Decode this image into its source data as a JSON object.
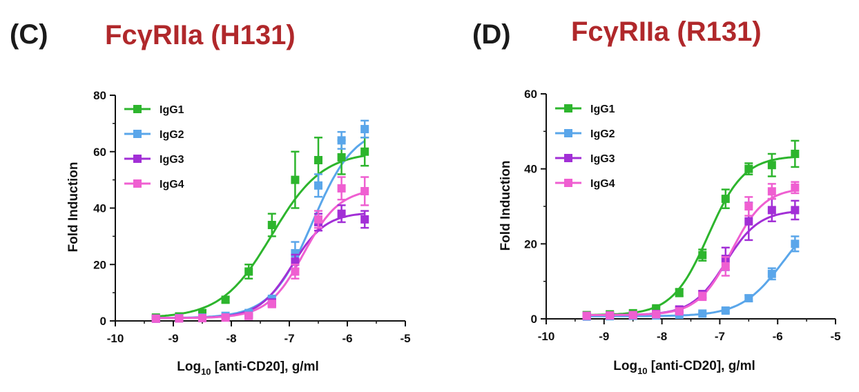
{
  "chart_data": [
    {
      "type": "line",
      "panel": "(C)",
      "title": "FcγRIIa (H131)",
      "xlabel": "Log",
      "xlabel_sub": "10",
      "xlabel_rest": " [anti-CD20], g/ml",
      "ylabel": "Fold Induction",
      "xlim": [
        -10,
        -5
      ],
      "ylim": [
        0,
        80
      ],
      "xticks": [
        -10,
        -9,
        -8,
        -7,
        -6,
        -5
      ],
      "xtick_labels": [
        "-10",
        "-9",
        "-8",
        "-7",
        "-6",
        "-5"
      ],
      "yticks": [
        0,
        20,
        40,
        60,
        80
      ],
      "ytick_labels": [
        "0",
        "20",
        "40",
        "60",
        "80"
      ],
      "x": [
        -9.3,
        -8.9,
        -8.5,
        -8.1,
        -7.7,
        -7.3,
        -6.9,
        -6.5,
        -6.1,
        -5.7
      ],
      "series": [
        {
          "name": "IgG1",
          "color": "#2db52d",
          "values": [
            1.2,
            1.6,
            2.8,
            7.5,
            17.5,
            34,
            50,
            57,
            58,
            60
          ],
          "errors": [
            0.5,
            0.5,
            0.8,
            1.0,
            2.5,
            4,
            10,
            8,
            6,
            5
          ],
          "curve": {
            "bottom": 1.0,
            "top": 60,
            "logEC50": -7.3,
            "hill": 1.0
          }
        },
        {
          "name": "IgG2",
          "color": "#5aa6ea",
          "values": [
            0.8,
            1.0,
            1.2,
            1.8,
            2.8,
            7.5,
            24,
            48,
            64,
            68
          ],
          "errors": [
            0.3,
            0.3,
            0.4,
            0.5,
            0.8,
            1.5,
            4,
            4,
            3,
            3
          ],
          "curve": {
            "bottom": 1.0,
            "top": 69,
            "logEC50": -6.6,
            "hill": 1.2
          }
        },
        {
          "name": "IgG3",
          "color": "#a22fd6",
          "values": [
            0.8,
            0.9,
            1.0,
            1.2,
            1.8,
            6.5,
            21,
            35,
            38,
            36
          ],
          "errors": [
            0.3,
            0.3,
            0.3,
            0.4,
            0.5,
            1.2,
            2.5,
            3,
            3,
            3
          ],
          "curve": {
            "bottom": 1.0,
            "top": 38.5,
            "logEC50": -6.95,
            "hill": 1.5
          }
        },
        {
          "name": "IgG4",
          "color": "#ef5fd1",
          "values": [
            0.8,
            0.9,
            1.0,
            1.2,
            1.8,
            6.0,
            17.5,
            36,
            47,
            46
          ],
          "errors": [
            0.3,
            0.3,
            0.3,
            0.4,
            0.5,
            1.2,
            2.5,
            3,
            4,
            5
          ],
          "curve": {
            "bottom": 1.0,
            "top": 47,
            "logEC50": -6.75,
            "hill": 1.4
          }
        }
      ]
    },
    {
      "type": "line",
      "panel": "(D)",
      "title": "FcγRIIa (R131)",
      "xlabel": "Log",
      "xlabel_sub": "10",
      "xlabel_rest": " [anti-CD20], g/ml",
      "ylabel": "Fold Induction",
      "xlim": [
        -10,
        -5
      ],
      "ylim": [
        0,
        60
      ],
      "xticks": [
        -10,
        -9,
        -8,
        -7,
        -6,
        -5
      ],
      "xtick_labels": [
        "-10",
        "-9",
        "-8",
        "-7",
        "-6",
        "-5"
      ],
      "yticks": [
        0,
        20,
        40,
        60
      ],
      "ytick_labels": [
        "0",
        "20",
        "40",
        "60"
      ],
      "x": [
        -9.3,
        -8.9,
        -8.5,
        -8.1,
        -7.7,
        -7.3,
        -6.9,
        -6.5,
        -6.1,
        -5.7
      ],
      "series": [
        {
          "name": "IgG1",
          "color": "#2db52d",
          "values": [
            1.0,
            1.2,
            1.5,
            2.8,
            7.0,
            17.0,
            32,
            40,
            41,
            44
          ],
          "errors": [
            0.3,
            0.3,
            0.4,
            0.5,
            1.0,
            1.5,
            2.5,
            1.5,
            3,
            3.5
          ],
          "curve": {
            "bottom": 1.0,
            "top": 43.5,
            "logEC50": -7.2,
            "hill": 1.4
          }
        },
        {
          "name": "IgG2",
          "color": "#5aa6ea",
          "values": [
            0.6,
            0.7,
            0.8,
            0.9,
            1.1,
            1.4,
            2.2,
            5.5,
            12,
            20
          ],
          "errors": [
            0.2,
            0.2,
            0.2,
            0.2,
            0.3,
            0.3,
            0.5,
            0.8,
            1.5,
            2
          ],
          "curve": {
            "bottom": 0.7,
            "top": 30,
            "logEC50": -5.9,
            "hill": 1.2
          }
        },
        {
          "name": "IgG3",
          "color": "#a22fd6",
          "values": [
            0.8,
            0.9,
            1.0,
            1.3,
            2.5,
            6.5,
            16,
            26,
            29,
            29
          ],
          "errors": [
            0.3,
            0.3,
            0.3,
            0.4,
            0.6,
            1.0,
            3,
            5,
            3,
            2.5
          ],
          "curve": {
            "bottom": 1.0,
            "top": 29,
            "logEC50": -6.9,
            "hill": 1.5
          }
        },
        {
          "name": "IgG4",
          "color": "#ef5fd1",
          "values": [
            0.8,
            0.9,
            1.0,
            1.2,
            2.0,
            6.0,
            14,
            30,
            34,
            35
          ],
          "errors": [
            0.3,
            0.3,
            0.3,
            0.4,
            0.5,
            1.0,
            2.5,
            2.5,
            2,
            1.5
          ],
          "curve": {
            "bottom": 1.0,
            "top": 35,
            "logEC50": -6.8,
            "hill": 1.5
          }
        }
      ]
    }
  ]
}
